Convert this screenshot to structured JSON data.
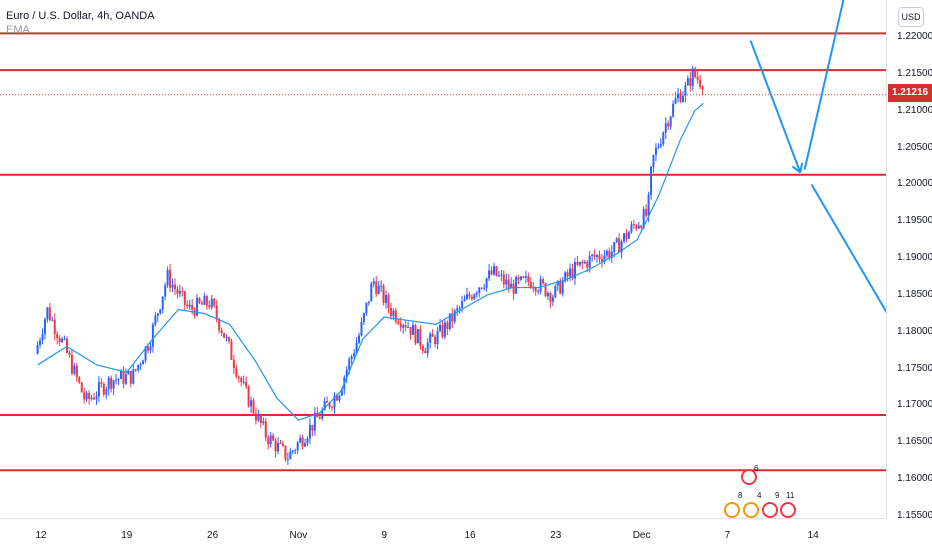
{
  "header": {
    "symbol": "Euro / U.S. Dollar, 4h, OANDA",
    "indicator": "EMA",
    "currency_button": "USD",
    "last_price": "1.21216"
  },
  "colors": {
    "bull": "#2962ff",
    "bear": "#f23645",
    "ema": "#2196f3",
    "level": "#d32f2f",
    "arrow": "#2196f3"
  },
  "chart_data": {
    "type": "candlestick",
    "title": "Euro / U.S. Dollar, 4h, OANDA",
    "ylim": [
      1.1545,
      1.2235
    ],
    "y_ticks": [
      "1.22000",
      "1.21500",
      "1.21000",
      "1.20500",
      "1.20000",
      "1.19500",
      "1.19000",
      "1.18500",
      "1.18000",
      "1.17500",
      "1.17000",
      "1.16500",
      "1.16000",
      "1.15500"
    ],
    "x_ticks": [
      "12",
      "19",
      "26",
      "Nov",
      "9",
      "16",
      "23",
      "Dec",
      "7",
      "14"
    ],
    "x_tick_index": [
      0,
      1,
      2,
      3,
      4,
      5,
      6,
      7,
      8,
      9
    ],
    "last_price": 1.21216,
    "horizontal_levels": [
      1.2205,
      1.2155,
      1.2013,
      1.1687,
      1.1612
    ],
    "price_path": [
      [
        -0.04,
        1.177
      ],
      [
        0.1,
        1.183
      ],
      [
        0.3,
        1.178
      ],
      [
        0.55,
        1.1705
      ],
      [
        0.85,
        1.1735
      ],
      [
        1.1,
        1.174
      ],
      [
        1.3,
        1.179
      ],
      [
        1.5,
        1.1875
      ],
      [
        1.75,
        1.183
      ],
      [
        2.0,
        1.184
      ],
      [
        2.15,
        1.18
      ],
      [
        2.4,
        1.172
      ],
      [
        2.65,
        1.166
      ],
      [
        2.9,
        1.163
      ],
      [
        3.1,
        1.166
      ],
      [
        3.3,
        1.169
      ],
      [
        3.5,
        1.172
      ],
      [
        3.75,
        1.18
      ],
      [
        3.9,
        1.187
      ],
      [
        4.1,
        1.183
      ],
      [
        4.3,
        1.181
      ],
      [
        4.5,
        1.178
      ],
      [
        4.7,
        1.18
      ],
      [
        4.9,
        1.183
      ],
      [
        5.1,
        1.186
      ],
      [
        5.3,
        1.188
      ],
      [
        5.5,
        1.186
      ],
      [
        5.75,
        1.187
      ],
      [
        6.0,
        1.185
      ],
      [
        6.2,
        1.188
      ],
      [
        6.45,
        1.19
      ],
      [
        6.7,
        1.191
      ],
      [
        6.95,
        1.1945
      ],
      [
        7.1,
        1.196
      ],
      [
        7.15,
        1.203
      ],
      [
        7.3,
        1.208
      ],
      [
        7.45,
        1.212
      ],
      [
        7.55,
        1.213
      ],
      [
        7.62,
        1.215
      ],
      [
        7.72,
        1.214
      ]
    ],
    "ema_path": [
      [
        -0.04,
        1.1755
      ],
      [
        0.3,
        1.178
      ],
      [
        0.65,
        1.1755
      ],
      [
        1.0,
        1.1745
      ],
      [
        1.3,
        1.179
      ],
      [
        1.6,
        1.183
      ],
      [
        1.9,
        1.1825
      ],
      [
        2.2,
        1.181
      ],
      [
        2.5,
        1.176
      ],
      [
        2.75,
        1.171
      ],
      [
        3.0,
        1.168
      ],
      [
        3.25,
        1.169
      ],
      [
        3.5,
        1.172
      ],
      [
        3.75,
        1.179
      ],
      [
        4.0,
        1.182
      ],
      [
        4.3,
        1.1815
      ],
      [
        4.6,
        1.181
      ],
      [
        4.9,
        1.183
      ],
      [
        5.2,
        1.185
      ],
      [
        5.5,
        1.186
      ],
      [
        5.8,
        1.186
      ],
      [
        6.1,
        1.187
      ],
      [
        6.4,
        1.1885
      ],
      [
        6.7,
        1.1905
      ],
      [
        6.95,
        1.1925
      ],
      [
        7.2,
        1.1985
      ],
      [
        7.45,
        1.206
      ],
      [
        7.62,
        1.21
      ],
      [
        7.72,
        1.211
      ]
    ],
    "arrows": [
      {
        "from": [
          8.27,
          1.2195
        ],
        "to": [
          8.85,
          1.2016
        ]
      },
      {
        "from": [
          8.9,
          1.202
        ],
        "to": [
          9.45,
          1.23
        ]
      },
      {
        "from": [
          8.98,
          1.2
        ],
        "to": [
          10.13,
          1.1772
        ]
      }
    ]
  },
  "events": {
    "top": "6",
    "bottom": [
      "8",
      "4",
      "9",
      "11"
    ]
  }
}
